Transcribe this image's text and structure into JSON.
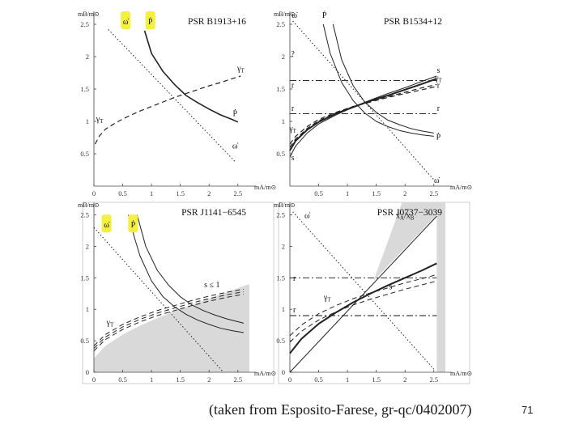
{
  "caption": "(taken from Esposito-Farese, gr-qc/0402007)",
  "slide_number": "71",
  "highlight_color": "#f5f03a",
  "shade_color": "#d9d9d9",
  "chart_data": [
    {
      "id": "B1913",
      "type": "line",
      "title": "PSR B1913+16",
      "xlabel": "mA/m⊙",
      "ylabel": "mB/m⊙",
      "xlim": [
        0,
        2.7
      ],
      "ylim": [
        0,
        2.7
      ],
      "xticks": [
        0,
        0.5,
        1,
        1.5,
        2,
        2.5
      ],
      "xtick_labels": [
        "0",
        "0.5",
        "1",
        "1.5",
        "2",
        "2.5"
      ],
      "yticks": [
        0.5,
        1,
        1.5,
        2,
        2.5
      ],
      "ytick_labels": [
        "0.5",
        "1",
        "1.5",
        "2",
        "2.5"
      ],
      "series": [
        {
          "name": "ω̇",
          "style": "dotted",
          "width": 1,
          "x": [
            0.25,
            2.45
          ],
          "y": [
            2.42,
            0.38
          ]
        },
        {
          "name": "Ṗ",
          "style": "solid",
          "width": 1.6,
          "x": [
            0.88,
            1.0,
            1.2,
            1.4,
            1.6,
            1.8,
            2.0,
            2.2,
            2.4,
            2.5
          ],
          "y": [
            2.4,
            2.05,
            1.77,
            1.57,
            1.4,
            1.29,
            1.19,
            1.1,
            1.03,
            0.99
          ]
        },
        {
          "name": "γT",
          "style": "dashed",
          "width": 1.2,
          "x": [
            0.02,
            0.1,
            0.2,
            0.4,
            0.6,
            0.8,
            1.0,
            1.2,
            1.4,
            1.6,
            1.8,
            2.0,
            2.2,
            2.4,
            2.55
          ],
          "y": [
            0.65,
            0.78,
            0.88,
            0.99,
            1.08,
            1.16,
            1.23,
            1.3,
            1.37,
            1.43,
            1.49,
            1.55,
            1.6,
            1.66,
            1.7
          ]
        }
      ],
      "hlines": [],
      "labels": [
        {
          "text": "ω̇",
          "x": 0.55,
          "y": 2.5,
          "highlight": true
        },
        {
          "text": "Ṗ",
          "x": 0.98,
          "y": 2.5,
          "highlight": true
        },
        {
          "text": "γ",
          "sub": "T",
          "x": 2.55,
          "y": 1.78
        },
        {
          "text": "γ",
          "sub": "T",
          "x": 0.1,
          "y": 1.0
        },
        {
          "text": "Ṗ",
          "x": 2.45,
          "y": 1.08
        },
        {
          "text": "ω̇",
          "x": 2.45,
          "y": 0.58
        }
      ],
      "shade": []
    },
    {
      "id": "B1534",
      "type": "line",
      "title": "PSR B1534+12",
      "xlabel": "mA/m⊙",
      "ylabel": "mB/m⊙",
      "xlim": [
        0,
        2.7
      ],
      "ylim": [
        0,
        2.7
      ],
      "xticks": [
        0.5,
        1,
        1.5,
        2,
        2.5
      ],
      "xtick_labels": [
        "0.5",
        "1",
        "1.5",
        "2",
        "2.5"
      ],
      "yticks": [
        0.5,
        1,
        1.5,
        2,
        2.5
      ],
      "ytick_labels": [
        "0.5",
        "1",
        "1.5",
        "2",
        "2.5"
      ],
      "series": [
        {
          "name": "ω̇",
          "style": "dotted",
          "width": 1,
          "x": [
            0.05,
            2.5
          ],
          "y": [
            2.55,
            0.1
          ]
        },
        {
          "name": "Ṗ",
          "style": "solid",
          "width": 1,
          "x": [
            0.58,
            0.7,
            0.9,
            1.1,
            1.3,
            1.5,
            1.7,
            1.9,
            2.1,
            2.3,
            2.5
          ],
          "y": [
            2.5,
            2.05,
            1.6,
            1.32,
            1.13,
            1.0,
            0.92,
            0.86,
            0.82,
            0.79,
            0.77
          ]
        },
        {
          "name": "Ṗ",
          "style": "solid",
          "width": 1,
          "x": [
            0.75,
            0.9,
            1.1,
            1.3,
            1.5,
            1.7,
            1.9,
            2.1,
            2.3,
            2.5
          ],
          "y": [
            2.5,
            1.95,
            1.55,
            1.3,
            1.14,
            1.02,
            0.95,
            0.89,
            0.85,
            0.82
          ]
        },
        {
          "name": "s",
          "style": "solid",
          "width": 2,
          "x": [
            0.0,
            0.1,
            0.3,
            0.5,
            0.8,
            1.1,
            1.4,
            1.7,
            2.0,
            2.3,
            2.55
          ],
          "y": [
            0.55,
            0.7,
            0.87,
            0.99,
            1.12,
            1.22,
            1.32,
            1.4,
            1.49,
            1.58,
            1.66
          ]
        },
        {
          "name": "s",
          "style": "solid",
          "width": 1,
          "x": [
            0.0,
            0.1,
            0.3,
            0.5,
            0.8,
            1.1,
            1.4,
            1.7,
            2.0,
            2.3,
            2.55
          ],
          "y": [
            0.45,
            0.62,
            0.82,
            0.96,
            1.1,
            1.22,
            1.33,
            1.43,
            1.52,
            1.62,
            1.7
          ]
        },
        {
          "name": "γT",
          "style": "dashed",
          "width": 1.2,
          "x": [
            0.0,
            0.1,
            0.3,
            0.5,
            0.8,
            1.1,
            1.4,
            1.7,
            2.0,
            2.3,
            2.55
          ],
          "y": [
            0.65,
            0.77,
            0.92,
            1.03,
            1.14,
            1.23,
            1.3,
            1.37,
            1.43,
            1.49,
            1.54
          ]
        },
        {
          "name": "γT",
          "style": "dashed",
          "width": 1.2,
          "x": [
            0.0,
            0.1,
            0.3,
            0.5,
            0.8,
            1.1,
            1.4,
            1.7,
            2.0,
            2.3,
            2.55
          ],
          "y": [
            0.6,
            0.73,
            0.89,
            1.01,
            1.13,
            1.23,
            1.31,
            1.38,
            1.45,
            1.52,
            1.57
          ]
        }
      ],
      "hlines": [
        {
          "y": 1.63,
          "style": "dashdot",
          "x0": 0.0,
          "x1": 2.55
        },
        {
          "y": 1.12,
          "style": "dashdot",
          "x0": 0.0,
          "x1": 2.55
        }
      ],
      "labels": [
        {
          "text": "ω̇",
          "x": 0.08,
          "y": 2.6
        },
        {
          "text": "Ṗ",
          "x": 0.6,
          "y": 2.6
        },
        {
          "text": "?",
          "x": 0.05,
          "y": 2.0
        },
        {
          "text": "r",
          "x": 0.05,
          "y": 1.52
        },
        {
          "text": "r",
          "x": 0.05,
          "y": 1.16
        },
        {
          "text": "γ",
          "sub": "T",
          "x": 0.05,
          "y": 0.85
        },
        {
          "text": "s",
          "x": 0.05,
          "y": 0.4
        },
        {
          "text": "s",
          "x": 2.58,
          "y": 1.75
        },
        {
          "text": "γ",
          "sub": "T",
          "x": 2.58,
          "y": 1.63
        },
        {
          "text": "r",
          "x": 2.58,
          "y": 1.52
        },
        {
          "text": "r",
          "x": 2.58,
          "y": 1.16
        },
        {
          "text": "Ṗ",
          "x": 2.58,
          "y": 0.72
        },
        {
          "text": "ω̇",
          "x": 2.55,
          "y": 0.05
        }
      ],
      "shade": []
    },
    {
      "id": "J1141",
      "type": "line",
      "title": "PSR J1141−6545",
      "xlabel": "mA/m⊙",
      "ylabel": "mB/m⊙",
      "xlim": [
        0,
        2.7
      ],
      "ylim": [
        0,
        2.7
      ],
      "xticks": [
        0,
        0.5,
        1,
        1.5,
        2,
        2.5
      ],
      "xtick_labels": [
        "0",
        "0.5",
        "1",
        "1.5",
        "2",
        "2.5"
      ],
      "yticks": [
        0,
        0.5,
        1,
        1.5,
        2,
        2.5
      ],
      "ytick_labels": [
        "0",
        "0.5",
        "1",
        "1.5",
        "2",
        "2.5"
      ],
      "series": [
        {
          "name": "ω̇",
          "style": "dotted",
          "width": 1,
          "x": [
            0.0,
            2.25
          ],
          "y": [
            2.3,
            0.0
          ]
        },
        {
          "name": "Ṗ",
          "style": "solid",
          "width": 1,
          "x": [
            0.6,
            0.7,
            0.8,
            1.0,
            1.2,
            1.4,
            1.6,
            1.8,
            2.0,
            2.2,
            2.4,
            2.6
          ],
          "y": [
            2.5,
            2.15,
            1.85,
            1.45,
            1.2,
            1.04,
            0.92,
            0.83,
            0.76,
            0.7,
            0.66,
            0.63
          ]
        },
        {
          "name": "Ṗ",
          "style": "solid",
          "width": 1,
          "x": [
            0.75,
            0.9,
            1.1,
            1.3,
            1.5,
            1.7,
            1.9,
            2.1,
            2.3,
            2.6
          ],
          "y": [
            2.5,
            2.0,
            1.62,
            1.38,
            1.2,
            1.07,
            0.98,
            0.91,
            0.85,
            0.78
          ]
        },
        {
          "name": "γT",
          "style": "dashed",
          "width": 1,
          "x": [
            0.0,
            0.2,
            0.5,
            0.8,
            1.1,
            1.4,
            1.7,
            2.0,
            2.3,
            2.6
          ],
          "y": [
            0.42,
            0.6,
            0.76,
            0.88,
            0.98,
            1.06,
            1.14,
            1.21,
            1.27,
            1.32
          ]
        },
        {
          "name": "γT",
          "style": "dashed",
          "width": 1,
          "x": [
            0.0,
            0.2,
            0.5,
            0.8,
            1.1,
            1.4,
            1.7,
            2.0,
            2.3,
            2.6
          ],
          "y": [
            0.38,
            0.56,
            0.72,
            0.84,
            0.94,
            1.02,
            1.1,
            1.17,
            1.23,
            1.28
          ]
        },
        {
          "name": "γT",
          "style": "dashed",
          "width": 1,
          "x": [
            0.0,
            0.2,
            0.5,
            0.8,
            1.1,
            1.4,
            1.7,
            2.0,
            2.3,
            2.6
          ],
          "y": [
            0.34,
            0.52,
            0.68,
            0.8,
            0.9,
            0.98,
            1.06,
            1.13,
            1.19,
            1.24
          ]
        }
      ],
      "hlines": [],
      "labels": [
        {
          "text": "ω̇",
          "x": 0.22,
          "y": 2.3,
          "highlight": true
        },
        {
          "text": "Ṗ",
          "x": 0.68,
          "y": 2.3,
          "highlight": true
        },
        {
          "text": "s ≤ 1",
          "x": 2.05,
          "y": 1.35
        },
        {
          "text": "γ",
          "sub": "T",
          "x": 0.28,
          "y": 0.75
        }
      ],
      "shade": [
        {
          "upper_x": [
            0.0,
            0.2,
            0.5,
            0.8,
            1.1,
            1.4,
            1.7,
            2.0,
            2.3,
            2.6,
            2.7
          ],
          "upper_y": [
            0.22,
            0.42,
            0.6,
            0.74,
            0.86,
            0.97,
            1.07,
            1.17,
            1.27,
            1.37,
            1.4
          ],
          "lower_y": 0
        }
      ]
    },
    {
      "id": "J0737",
      "type": "line",
      "title": "PSR J0737−3039",
      "xlabel": "mA/m⊙",
      "ylabel": "mB/m⊙",
      "xlim": [
        0,
        2.7
      ],
      "ylim": [
        0,
        2.7
      ],
      "xticks": [
        0,
        0.5,
        1,
        1.5,
        2,
        2.5
      ],
      "xtick_labels": [
        "0",
        "0.5",
        "1",
        "1.5",
        "2",
        "2.5"
      ],
      "yticks": [
        0,
        0.5,
        1,
        1.5,
        2,
        2.5
      ],
      "ytick_labels": [
        "0",
        "0.5",
        "1",
        "1.5",
        "2",
        "2.5"
      ],
      "series": [
        {
          "name": "ω̇",
          "style": "dotted",
          "width": 1,
          "x": [
            0.05,
            2.5
          ],
          "y": [
            2.55,
            0.05
          ]
        },
        {
          "name": "xA/xB",
          "style": "solid",
          "width": 1,
          "x": [
            0.0,
            2.55
          ],
          "y": [
            0.0,
            2.48
          ]
        },
        {
          "name": "s",
          "style": "solid",
          "width": 2,
          "x": [
            0.0,
            0.2,
            0.5,
            0.8,
            1.1,
            1.4,
            1.7,
            2.0,
            2.3,
            2.55
          ],
          "y": [
            0.3,
            0.53,
            0.77,
            0.95,
            1.11,
            1.25,
            1.38,
            1.5,
            1.62,
            1.73
          ]
        },
        {
          "name": "γT",
          "style": "dashed",
          "width": 1,
          "x": [
            0.0,
            0.2,
            0.5,
            0.8,
            1.1,
            1.4,
            1.7,
            2.0,
            2.3,
            2.55
          ],
          "y": [
            0.58,
            0.75,
            0.93,
            1.06,
            1.17,
            1.26,
            1.34,
            1.42,
            1.49,
            1.55
          ]
        },
        {
          "name": "γT",
          "style": "dashed",
          "width": 1,
          "x": [
            0.0,
            0.2,
            0.5,
            0.8,
            1.1,
            1.4,
            1.7,
            2.0,
            2.3,
            2.55
          ],
          "y": [
            0.48,
            0.65,
            0.83,
            0.96,
            1.07,
            1.16,
            1.24,
            1.32,
            1.39,
            1.45
          ]
        }
      ],
      "hlines": [
        {
          "y": 1.5,
          "style": "dashdot",
          "x0": 0.0,
          "x1": 2.55
        },
        {
          "y": 0.9,
          "style": "dashdot",
          "x0": 0.0,
          "x1": 2.55
        }
      ],
      "labels": [
        {
          "text": "ω̇",
          "x": 0.3,
          "y": 2.45
        },
        {
          "text": "x",
          "sub": "A",
          "after": "/x",
          "sub2": "B",
          "x": 2.0,
          "y": 2.45
        },
        {
          "text": "r",
          "x": 0.08,
          "y": 1.45
        },
        {
          "text": "r",
          "x": 0.08,
          "y": 0.95
        },
        {
          "text": "γ",
          "sub": "T",
          "x": 0.65,
          "y": 1.15
        },
        {
          "text": "s",
          "x": 1.75,
          "y": 1.32
        }
      ],
      "shade": [
        {
          "polygon_x": [
            0.0,
            1.95,
            1.45,
            2.55,
            2.55,
            2.7,
            2.7,
            0.0
          ],
          "polygon_y": [
            2.7,
            2.7,
            1.45,
            2.5,
            0.0,
            0.0,
            2.7,
            2.7
          ]
        }
      ]
    }
  ]
}
